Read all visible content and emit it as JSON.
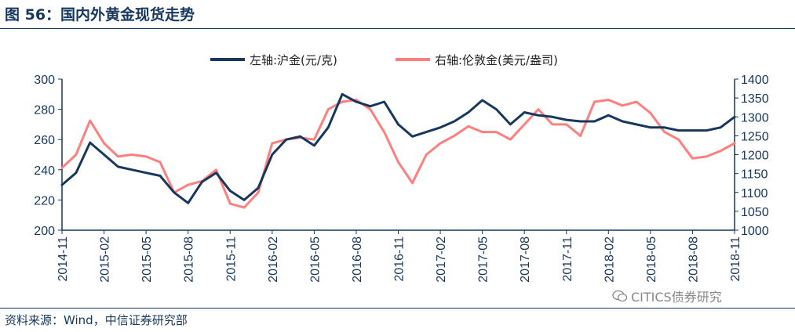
{
  "header": {
    "title": "图 56：国内外黄金现货走势"
  },
  "footer": {
    "source": "资料来源：Wind，中信证券研究部",
    "watermark": "CITICS债券研究"
  },
  "chart_data": {
    "type": "line",
    "x_tick_labels": [
      "2014-11",
      "2015-02",
      "2015-05",
      "2015-08",
      "2015-11",
      "2016-02",
      "2016-05",
      "2016-08",
      "2016-11",
      "2017-02",
      "2017-05",
      "2017-08",
      "2017-11",
      "2018-02",
      "2018-05",
      "2018-08",
      "2018-11"
    ],
    "y_left": {
      "label": "",
      "ylim": [
        200,
        300
      ],
      "ticks": [
        200,
        220,
        240,
        260,
        280,
        300
      ]
    },
    "y_right": {
      "label": "",
      "ylim": [
        1000,
        1400
      ],
      "ticks": [
        1000,
        1050,
        1100,
        1150,
        1200,
        1250,
        1300,
        1350,
        1400
      ]
    },
    "grid": false,
    "legend_position": "top-center",
    "series": [
      {
        "name": "左轴:沪金(元/克)",
        "axis": "left",
        "color": "#17375e",
        "x": [
          "2014-11",
          "2014-12",
          "2015-01",
          "2015-02",
          "2015-03",
          "2015-04",
          "2015-05",
          "2015-06",
          "2015-07",
          "2015-08",
          "2015-09",
          "2015-10",
          "2015-11",
          "2015-12",
          "2016-01",
          "2016-02",
          "2016-03",
          "2016-04",
          "2016-05",
          "2016-06",
          "2016-07",
          "2016-08",
          "2016-09",
          "2016-10",
          "2016-11",
          "2016-12",
          "2017-01",
          "2017-02",
          "2017-03",
          "2017-04",
          "2017-05",
          "2017-06",
          "2017-07",
          "2017-08",
          "2017-09",
          "2017-10",
          "2017-11",
          "2017-12",
          "2018-01",
          "2018-02",
          "2018-03",
          "2018-04",
          "2018-05",
          "2018-06",
          "2018-07",
          "2018-08",
          "2018-09",
          "2018-10",
          "2018-11"
        ],
        "values": [
          230,
          238,
          258,
          250,
          242,
          240,
          238,
          236,
          225,
          218,
          232,
          238,
          226,
          220,
          228,
          250,
          260,
          262,
          256,
          268,
          290,
          285,
          282,
          285,
          270,
          262,
          265,
          268,
          272,
          278,
          286,
          280,
          270,
          278,
          276,
          275,
          273,
          272,
          272,
          276,
          272,
          270,
          268,
          268,
          266,
          266,
          266,
          268,
          275
        ]
      },
      {
        "name": "右轴:伦敦金(美元/盎司)",
        "axis": "right",
        "color": "#ff7f7f",
        "x": [
          "2014-11",
          "2014-12",
          "2015-01",
          "2015-02",
          "2015-03",
          "2015-04",
          "2015-05",
          "2015-06",
          "2015-07",
          "2015-08",
          "2015-09",
          "2015-10",
          "2015-11",
          "2015-12",
          "2016-01",
          "2016-02",
          "2016-03",
          "2016-04",
          "2016-05",
          "2016-06",
          "2016-07",
          "2016-08",
          "2016-09",
          "2016-10",
          "2016-11",
          "2016-12",
          "2017-01",
          "2017-02",
          "2017-03",
          "2017-04",
          "2017-05",
          "2017-06",
          "2017-07",
          "2017-08",
          "2017-09",
          "2017-10",
          "2017-11",
          "2017-12",
          "2018-01",
          "2018-02",
          "2018-03",
          "2018-04",
          "2018-05",
          "2018-06",
          "2018-07",
          "2018-08",
          "2018-09",
          "2018-10",
          "2018-11"
        ],
        "values": [
          1165,
          1200,
          1290,
          1230,
          1195,
          1200,
          1195,
          1180,
          1100,
          1120,
          1130,
          1160,
          1070,
          1060,
          1100,
          1230,
          1240,
          1245,
          1240,
          1320,
          1340,
          1345,
          1320,
          1260,
          1180,
          1125,
          1200,
          1230,
          1250,
          1275,
          1260,
          1260,
          1240,
          1280,
          1320,
          1280,
          1280,
          1250,
          1340,
          1345,
          1330,
          1340,
          1310,
          1260,
          1240,
          1190,
          1195,
          1210,
          1230
        ]
      }
    ]
  }
}
